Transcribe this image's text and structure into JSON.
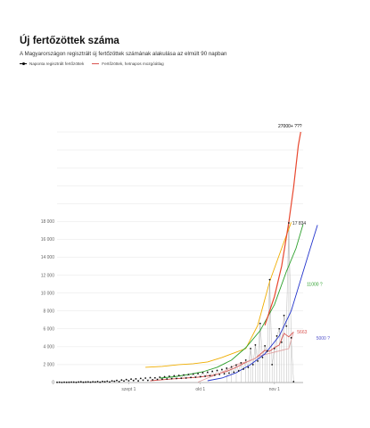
{
  "title": "Új fertőzöttek száma",
  "subtitle": "A Magyarországon regisztrált új fertőzöttek számának alakulása az elmúlt 90 napban",
  "legend": [
    {
      "label": "Naponta regisztrált fertőzöttek",
      "color": "#000000",
      "kind": "dots"
    },
    {
      "label": "Fertőzöttek, hetnapos mozgóátlag",
      "color": "#d9534f",
      "kind": "line"
    }
  ],
  "chart_data": {
    "type": "line",
    "x_unit": "day",
    "x_range": [
      1,
      104
    ],
    "ylim": [
      0,
      28000
    ],
    "y_ticks": [
      0,
      2000,
      4000,
      6000,
      8000,
      10000,
      12000,
      14000,
      16000,
      18000
    ],
    "y_tick_labels": [
      "0",
      "2 000",
      "4 000",
      "6 000",
      "8 000",
      "10 000",
      "12 000",
      "14 000",
      "16 000",
      "18 000"
    ],
    "x_ticks": [
      {
        "x": 31,
        "label": "szept 1"
      },
      {
        "x": 61,
        "label": "okt 1"
      },
      {
        "x": 92,
        "label": "nov 1"
      }
    ],
    "daily_points": [
      [
        1,
        20
      ],
      [
        2,
        35
      ],
      [
        3,
        15
      ],
      [
        4,
        40
      ],
      [
        5,
        25
      ],
      [
        6,
        30
      ],
      [
        7,
        50
      ],
      [
        8,
        45
      ],
      [
        9,
        20
      ],
      [
        10,
        60
      ],
      [
        11,
        80
      ],
      [
        12,
        30
      ],
      [
        13,
        55
      ],
      [
        14,
        70
      ],
      [
        15,
        40
      ],
      [
        16,
        90
      ],
      [
        17,
        60
      ],
      [
        18,
        110
      ],
      [
        19,
        35
      ],
      [
        20,
        120
      ],
      [
        21,
        80
      ],
      [
        22,
        150
      ],
      [
        23,
        60
      ],
      [
        24,
        190
      ],
      [
        25,
        140
      ],
      [
        26,
        230
      ],
      [
        27,
        100
      ],
      [
        28,
        280
      ],
      [
        29,
        170
      ],
      [
        30,
        340
      ],
      [
        31,
        200
      ],
      [
        32,
        380
      ],
      [
        33,
        220
      ],
      [
        34,
        410
      ],
      [
        35,
        180
      ],
      [
        36,
        460
      ],
      [
        37,
        260
      ],
      [
        38,
        500
      ],
      [
        39,
        240
      ],
      [
        40,
        550
      ],
      [
        41,
        300
      ],
      [
        42,
        520
      ],
      [
        43,
        350
      ],
      [
        44,
        600
      ],
      [
        45,
        380
      ],
      [
        46,
        650
      ],
      [
        47,
        400
      ],
      [
        48,
        700
      ],
      [
        49,
        430
      ],
      [
        50,
        760
      ],
      [
        51,
        450
      ],
      [
        52,
        800
      ],
      [
        53,
        480
      ],
      [
        54,
        850
      ],
      [
        55,
        500
      ],
      [
        56,
        900
      ],
      [
        57,
        560
      ],
      [
        58,
        950
      ],
      [
        59,
        600
      ],
      [
        60,
        1000
      ],
      [
        61,
        650
      ],
      [
        62,
        1100
      ],
      [
        63,
        700
      ],
      [
        64,
        1150
      ],
      [
        65,
        760
      ],
      [
        66,
        1250
      ],
      [
        67,
        820
      ],
      [
        68,
        1350
      ],
      [
        69,
        900
      ],
      [
        70,
        1450
      ],
      [
        71,
        980
      ],
      [
        72,
        1600
      ],
      [
        73,
        1050
      ],
      [
        74,
        1750
      ],
      [
        75,
        1150
      ],
      [
        76,
        1950
      ],
      [
        77,
        1300
      ],
      [
        78,
        2200
      ],
      [
        79,
        1500
      ],
      [
        80,
        2500
      ],
      [
        81,
        1700
      ],
      [
        82,
        3800
      ],
      [
        83,
        2000
      ],
      [
        84,
        4200
      ],
      [
        85,
        2400
      ],
      [
        86,
        6600
      ],
      [
        87,
        2800
      ],
      [
        88,
        4100
      ],
      [
        89,
        3500
      ],
      [
        90,
        11500
      ],
      [
        91,
        2000
      ],
      [
        92,
        3800
      ],
      [
        93,
        5200
      ],
      [
        94,
        6000
      ],
      [
        95,
        4500
      ],
      [
        96,
        7500
      ],
      [
        97,
        6300
      ],
      [
        98,
        17834
      ],
      [
        99,
        5000
      ],
      [
        100,
        100
      ]
    ],
    "series": [
      {
        "color": "#d9534f",
        "points": [
          [
            40,
            200
          ],
          [
            50,
            420
          ],
          [
            60,
            600
          ],
          [
            66,
            800
          ],
          [
            72,
            1250
          ],
          [
            76,
            1700
          ],
          [
            80,
            2250
          ],
          [
            84,
            2700
          ],
          [
            88,
            3600
          ],
          [
            90,
            3500
          ],
          [
            92,
            3900
          ],
          [
            94,
            4200
          ],
          [
            96,
            5500
          ],
          [
            98,
            5100
          ],
          [
            100,
            5663
          ]
        ]
      },
      {
        "color": "#f0ad00",
        "points": [
          [
            38,
            1700
          ],
          [
            45,
            1800
          ],
          [
            52,
            2000
          ],
          [
            58,
            2100
          ],
          [
            64,
            2300
          ],
          [
            70,
            2800
          ],
          [
            75,
            3300
          ],
          [
            80,
            3800
          ],
          [
            85,
            6400
          ],
          [
            90,
            11300
          ],
          [
            95,
            15000
          ],
          [
            99,
            17900
          ]
        ]
      },
      {
        "color": "#e0a0a0",
        "points": [
          [
            60,
            50
          ],
          [
            64,
            500
          ],
          [
            68,
            900
          ],
          [
            72,
            1400
          ],
          [
            76,
            2000
          ],
          [
            80,
            2300
          ],
          [
            83,
            2600
          ],
          [
            86,
            3000
          ],
          [
            89,
            3200
          ],
          [
            92,
            3400
          ],
          [
            95,
            3600
          ],
          [
            98,
            3800
          ],
          [
            100,
            5663
          ]
        ]
      },
      {
        "color": "#2ca02c",
        "points": [
          [
            44,
            500
          ],
          [
            50,
            650
          ],
          [
            56,
            900
          ],
          [
            62,
            1200
          ],
          [
            68,
            1700
          ],
          [
            74,
            2500
          ],
          [
            80,
            3900
          ],
          [
            86,
            5800
          ],
          [
            92,
            8700
          ],
          [
            97,
            12400
          ],
          [
            101,
            15000
          ],
          [
            104,
            17700
          ]
        ]
      },
      {
        "color": "#2233cc",
        "points": [
          [
            64,
            200
          ],
          [
            70,
            500
          ],
          [
            76,
            1100
          ],
          [
            82,
            2000
          ],
          [
            88,
            3200
          ],
          [
            94,
            5200
          ],
          [
            99,
            8000
          ],
          [
            103,
            11500
          ],
          [
            107,
            15000
          ],
          [
            110,
            17600
          ]
        ]
      },
      {
        "color": "#e8472e",
        "points": [
          [
            88,
            6400
          ],
          [
            92,
            9600
          ],
          [
            95,
            13000
          ],
          [
            98,
            17900
          ],
          [
            100,
            21800
          ],
          [
            102,
            26500
          ],
          [
            103,
            28000
          ]
        ]
      }
    ],
    "annotations": [
      {
        "text": "27000+ ???",
        "x": 100,
        "y": 28000,
        "color": "#000000"
      },
      {
        "text": "17 834",
        "x": 98,
        "y": 17834,
        "color": "#333333"
      },
      {
        "text": "11000 ?",
        "x": 104,
        "y": 11000,
        "color": "#2ca02c"
      },
      {
        "text": "5663",
        "x": 100,
        "y": 5663,
        "color": "#d9534f"
      },
      {
        "text": "5000 ?",
        "x": 108,
        "y": 5000,
        "color": "#5555cc"
      }
    ]
  }
}
